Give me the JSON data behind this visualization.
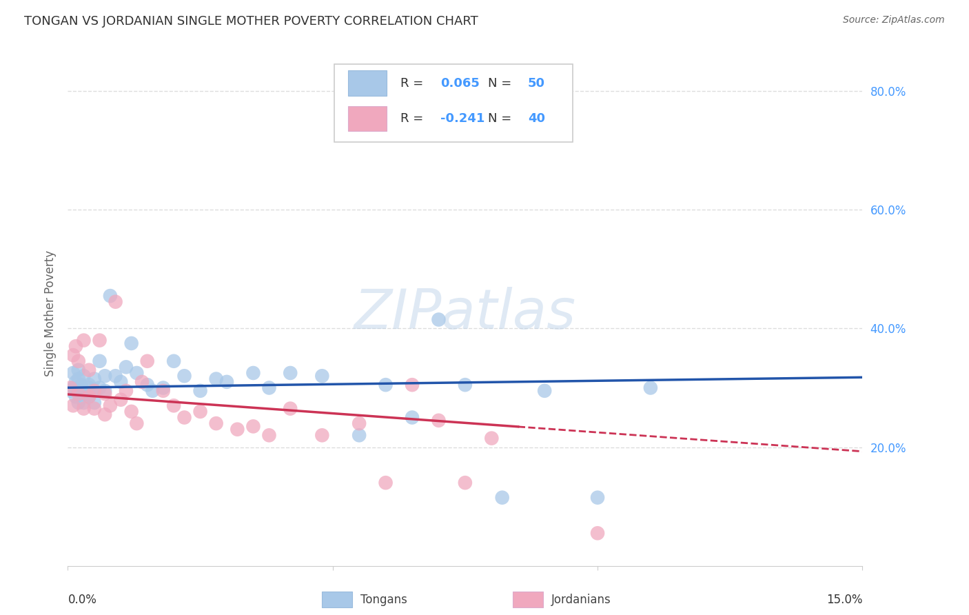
{
  "title": "TONGAN VS JORDANIAN SINGLE MOTHER POVERTY CORRELATION CHART",
  "source": "Source: ZipAtlas.com",
  "ylabel": "Single Mother Poverty",
  "x_range": [
    0.0,
    0.15
  ],
  "y_range": [
    0.0,
    0.85
  ],
  "y_ticks": [
    0.2,
    0.4,
    0.6,
    0.8
  ],
  "y_tick_labels": [
    "20.0%",
    "40.0%",
    "60.0%",
    "80.0%"
  ],
  "x_tick_label_left": "0.0%",
  "x_tick_label_right": "15.0%",
  "tongan_R": 0.065,
  "tongan_N": 50,
  "jordanian_R": -0.241,
  "jordanian_N": 40,
  "tongan_color": "#a8c8e8",
  "jordanian_color": "#f0a8be",
  "tongan_line_color": "#2255aa",
  "jordanian_line_color": "#cc3355",
  "tongan_x": [
    0.0005,
    0.001,
    0.001,
    0.0015,
    0.0015,
    0.002,
    0.002,
    0.002,
    0.002,
    0.0025,
    0.003,
    0.003,
    0.003,
    0.004,
    0.004,
    0.004,
    0.005,
    0.005,
    0.005,
    0.006,
    0.006,
    0.007,
    0.007,
    0.008,
    0.009,
    0.01,
    0.011,
    0.012,
    0.013,
    0.015,
    0.016,
    0.018,
    0.02,
    0.022,
    0.025,
    0.028,
    0.03,
    0.035,
    0.038,
    0.042,
    0.048,
    0.055,
    0.06,
    0.065,
    0.07,
    0.075,
    0.082,
    0.09,
    0.1,
    0.11
  ],
  "tongan_y": [
    0.295,
    0.3,
    0.325,
    0.285,
    0.31,
    0.33,
    0.295,
    0.275,
    0.315,
    0.305,
    0.29,
    0.275,
    0.32,
    0.305,
    0.285,
    0.3,
    0.315,
    0.295,
    0.275,
    0.345,
    0.3,
    0.32,
    0.295,
    0.455,
    0.32,
    0.31,
    0.335,
    0.375,
    0.325,
    0.305,
    0.295,
    0.3,
    0.345,
    0.32,
    0.295,
    0.315,
    0.31,
    0.325,
    0.3,
    0.325,
    0.32,
    0.22,
    0.305,
    0.25,
    0.415,
    0.305,
    0.115,
    0.295,
    0.115,
    0.3
  ],
  "jordanian_x": [
    0.0005,
    0.001,
    0.001,
    0.0015,
    0.002,
    0.002,
    0.003,
    0.003,
    0.004,
    0.004,
    0.005,
    0.005,
    0.006,
    0.007,
    0.007,
    0.008,
    0.009,
    0.01,
    0.011,
    0.012,
    0.013,
    0.014,
    0.015,
    0.018,
    0.02,
    0.022,
    0.025,
    0.028,
    0.032,
    0.035,
    0.038,
    0.042,
    0.048,
    0.055,
    0.06,
    0.065,
    0.07,
    0.075,
    0.08,
    0.1
  ],
  "jordanian_y": [
    0.3,
    0.355,
    0.27,
    0.37,
    0.345,
    0.29,
    0.38,
    0.265,
    0.33,
    0.285,
    0.295,
    0.265,
    0.38,
    0.29,
    0.255,
    0.27,
    0.445,
    0.28,
    0.295,
    0.26,
    0.24,
    0.31,
    0.345,
    0.295,
    0.27,
    0.25,
    0.26,
    0.24,
    0.23,
    0.235,
    0.22,
    0.265,
    0.22,
    0.24,
    0.14,
    0.305,
    0.245,
    0.14,
    0.215,
    0.055
  ],
  "legend_labels": [
    "Tongans",
    "Jordanians"
  ],
  "background_color": "#ffffff",
  "grid_color": "#dddddd",
  "tick_color": "#4499ff",
  "axis_label_color": "#666666"
}
